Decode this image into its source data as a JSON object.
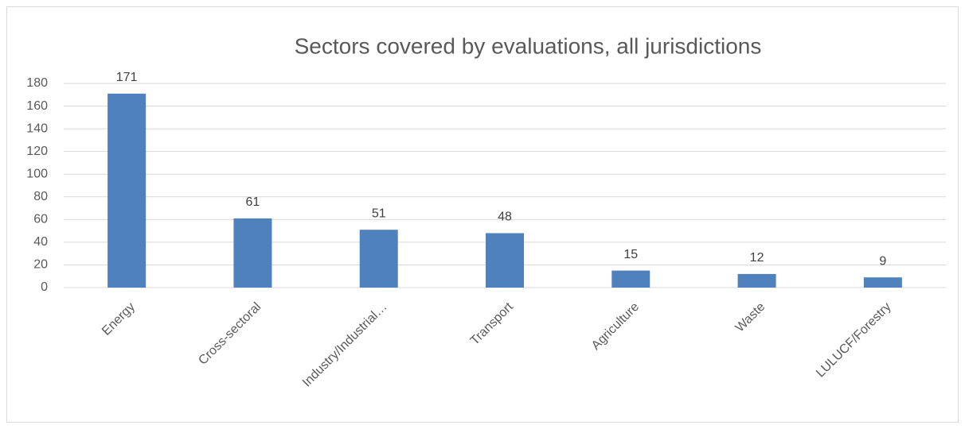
{
  "chart_data": {
    "type": "bar",
    "title": "Sectors covered by evaluations, all jurisdictions",
    "categories": [
      "Energy",
      "Cross-sectoral",
      "Industry/Industrial…",
      "Transport",
      "Agriculture",
      "Waste",
      "LULUCF/Forestry"
    ],
    "values": [
      171,
      61,
      51,
      48,
      15,
      12,
      9
    ],
    "color": "#4f81bd",
    "ylim": [
      0,
      180
    ],
    "yticks": [
      0,
      20,
      40,
      60,
      80,
      100,
      120,
      140,
      160,
      180
    ],
    "grid": true
  }
}
